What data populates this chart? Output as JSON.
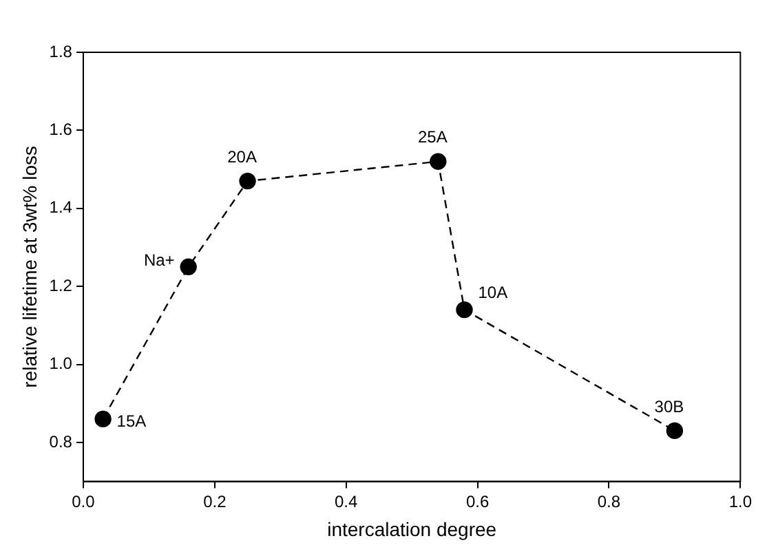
{
  "chart_data": {
    "type": "line",
    "xlabel": "intercalation degree",
    "ylabel": "relative lifetime at 3wt% loss",
    "x": [
      0.03,
      0.16,
      0.25,
      0.54,
      0.58,
      0.9
    ],
    "series": [
      {
        "color": "#000000",
        "values": [
          0.86,
          1.25,
          1.47,
          1.52,
          1.14,
          0.83
        ]
      }
    ],
    "xlim": [
      0,
      1
    ],
    "xticks": [
      {
        "value": 0,
        "label": "0.0"
      },
      0.2,
      0.4,
      0.6,
      0.8,
      {
        "value": 1,
        "label": "1.0"
      }
    ],
    "ylim": [
      0.7,
      1.8
    ],
    "yticks": [
      0.8,
      {
        "value": 1,
        "label": "1.0"
      },
      1.2,
      1.4,
      1.6,
      1.8
    ],
    "annotations": [
      {
        "text": "15A",
        "x": 0.03,
        "y": 0.86
      },
      {
        "text": "Na+",
        "x": 0.16,
        "y": 1.25
      },
      {
        "text": "20A",
        "x": 0.25,
        "y": 1.47
      },
      {
        "text": "25A",
        "x": 0.54,
        "y": 1.52
      },
      {
        "text": "10A",
        "x": 0.58,
        "y": 1.14
      },
      {
        "text": "30B",
        "x": 0.9,
        "y": 0.83
      }
    ],
    "marker": "circle",
    "line_style": "dashed",
    "grid": false,
    "legend": false
  }
}
